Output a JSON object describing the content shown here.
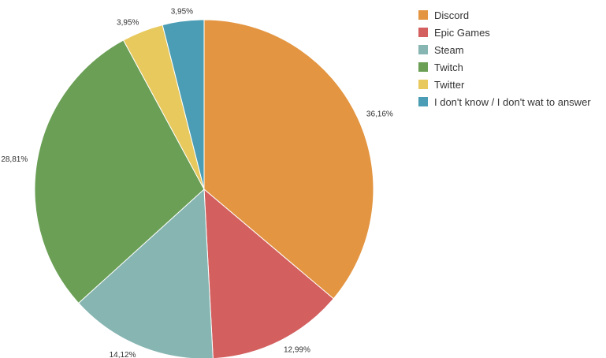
{
  "chart_data": {
    "type": "pie",
    "title": "",
    "legend_position": "top-right",
    "start_angle_deg": 0,
    "direction": "clockwise",
    "slices": [
      {
        "label": "Discord",
        "value": 36.16,
        "value_label": "36,16%",
        "color": "#E39541"
      },
      {
        "label": "Epic Games",
        "value": 12.99,
        "value_label": "12,99%",
        "color": "#D35F5F"
      },
      {
        "label": "Steam",
        "value": 14.12,
        "value_label": "14,12%",
        "color": "#86B5B2"
      },
      {
        "label": "Twitch",
        "value": 28.81,
        "value_label": "28,81%",
        "color": "#6A9F55"
      },
      {
        "label": "Twitter",
        "value": 3.95,
        "value_label": "3,95%",
        "color": "#E8C95E"
      },
      {
        "label": "I don't know / I don't wat to answer",
        "value": 3.95,
        "value_label": "3,95%",
        "color": "#4A9DB4"
      }
    ]
  }
}
